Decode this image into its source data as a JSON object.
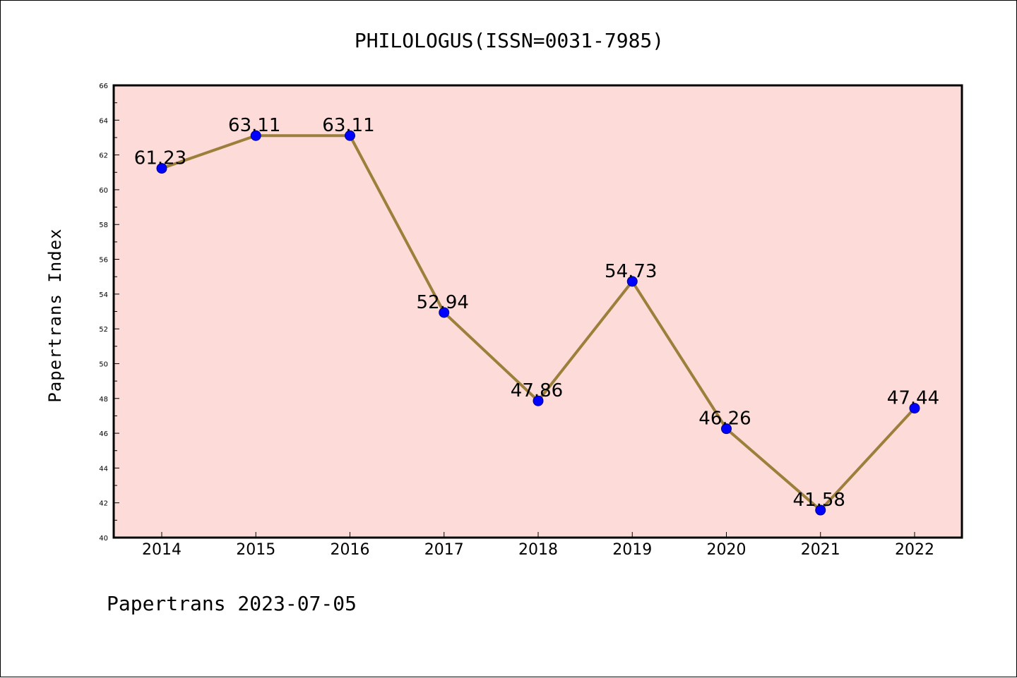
{
  "chart_data": {
    "type": "line",
    "title": "PHILOLOGUS(ISSN=0031-7985)",
    "ylabel": "Papertrans Index",
    "xlabel": "",
    "footer": "Papertrans 2023-07-05",
    "categories": [
      "2014",
      "2015",
      "2016",
      "2017",
      "2018",
      "2019",
      "2020",
      "2021",
      "2022"
    ],
    "values": [
      61.23,
      63.11,
      63.11,
      52.94,
      47.86,
      54.73,
      46.26,
      41.58,
      47.44
    ],
    "data_labels": [
      "61.23",
      "63.11",
      "63.11",
      "52.94",
      "47.86",
      "54.73",
      "46.26",
      "41.58",
      "47.44"
    ],
    "ylim": [
      40,
      66
    ],
    "yticks": [
      40,
      42,
      44,
      46,
      48,
      50,
      52,
      54,
      56,
      58,
      60,
      62,
      64,
      66
    ],
    "ytick_labels": [
      "40",
      "42",
      "44",
      "46",
      "48",
      "50",
      "52",
      "54",
      "56",
      "58",
      "60",
      "62",
      "64",
      "66"
    ],
    "grid": false,
    "colors": {
      "plot_background": "#fddbd8",
      "line": "#9b7f3b",
      "marker_fill": "#0000ff",
      "marker_edge": "#000080"
    }
  }
}
